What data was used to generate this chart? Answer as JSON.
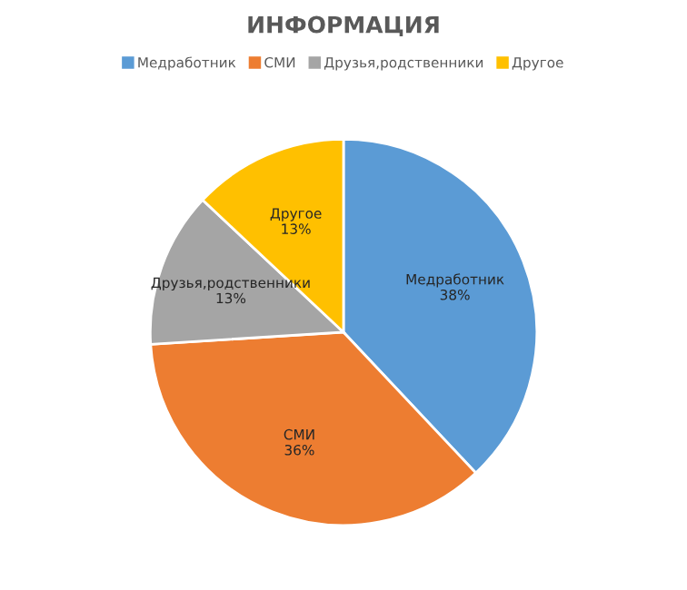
{
  "chart_data": {
    "type": "pie",
    "title": "ИНФОРМАЦИЯ",
    "categories": [
      "Медработник",
      "СМИ",
      "Друзья,родственники",
      "Другое"
    ],
    "values": [
      38,
      36,
      13,
      13
    ],
    "value_labels": [
      "38%",
      "36%",
      "13%",
      "13%"
    ],
    "colors": [
      "#5b9bd5",
      "#ed7d31",
      "#a5a5a5",
      "#ffc000"
    ],
    "legend": "top"
  }
}
